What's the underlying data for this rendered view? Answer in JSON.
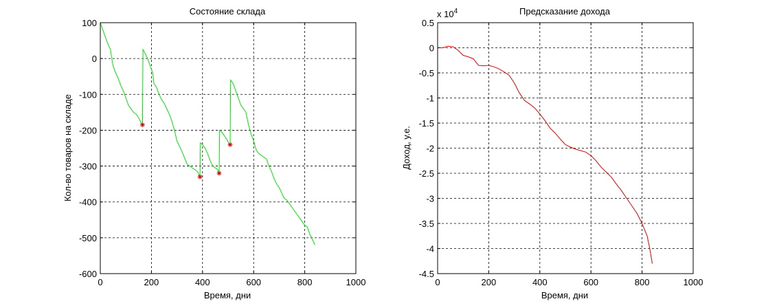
{
  "chart_data": [
    {
      "type": "line",
      "title": "Состояние склада",
      "xlabel": "Время, дни",
      "ylabel": "Кол-во товаров на складе",
      "xlim": [
        0,
        1000
      ],
      "ylim": [
        -600,
        100
      ],
      "xticks": [
        0,
        200,
        400,
        600,
        800,
        1000
      ],
      "yticks": [
        100,
        0,
        -100,
        -200,
        -300,
        -400,
        -500,
        -600
      ],
      "xtick_labels": [
        "0",
        "200",
        "400",
        "600",
        "800",
        "1000"
      ],
      "ytick_labels": [
        "100",
        "0",
        "-100",
        "-200",
        "-300",
        "-400",
        "-500",
        "-600"
      ],
      "grid": true,
      "line_color": "#00e600",
      "marker_color": "#cc0000",
      "series": [
        {
          "x": [
            0,
            10,
            20,
            30,
            40,
            45,
            50,
            60,
            70,
            80,
            90,
            100,
            110,
            120,
            130,
            140,
            150,
            160,
            165,
            167,
            175,
            185,
            195,
            205,
            210,
            220,
            230,
            240,
            250,
            260,
            270,
            280,
            290,
            300,
            320,
            340,
            360,
            380,
            390,
            392,
            400,
            410,
            420,
            430,
            440,
            450,
            460,
            465,
            467,
            475,
            485,
            495,
            505,
            508,
            510,
            520,
            530,
            540,
            550,
            560,
            570,
            580,
            590,
            600,
            610,
            620,
            630,
            640,
            650,
            660,
            670,
            680,
            690,
            700,
            710,
            720,
            730,
            740,
            750,
            760,
            770,
            780,
            790,
            800,
            810,
            820,
            830,
            840
          ],
          "y": [
            100,
            80,
            60,
            40,
            25,
            0,
            -20,
            -40,
            -55,
            -75,
            -90,
            -110,
            -130,
            -140,
            -150,
            -155,
            -165,
            -180,
            -185,
            25,
            15,
            0,
            -20,
            -40,
            -70,
            -80,
            -100,
            -115,
            -125,
            -140,
            -155,
            -175,
            -200,
            -230,
            -260,
            -295,
            -305,
            -315,
            -330,
            -235,
            -240,
            -250,
            -265,
            -285,
            -300,
            -305,
            -310,
            -320,
            -200,
            -205,
            -215,
            -225,
            -240,
            -240,
            -60,
            -70,
            -90,
            -110,
            -130,
            -140,
            -150,
            -185,
            -210,
            -230,
            -255,
            -265,
            -270,
            -275,
            -280,
            -300,
            -315,
            -335,
            -350,
            -360,
            -375,
            -390,
            -395,
            -405,
            -415,
            -425,
            -435,
            -445,
            -455,
            -465,
            -470,
            -490,
            -505,
            -520
          ]
        }
      ],
      "markers": {
        "x": [
          165,
          390,
          465,
          508
        ],
        "y": [
          -185,
          -330,
          -320,
          -240
        ]
      }
    },
    {
      "type": "line",
      "title": "Предсказание дохода",
      "xlabel": "Время, дни",
      "ylabel": "Доход, у.е.",
      "exponent_label": "x 10",
      "exponent_power": "4",
      "xlim": [
        0,
        1000
      ],
      "ylim": [
        -4.5,
        0.5
      ],
      "xticks": [
        0,
        200,
        400,
        600,
        800,
        1000
      ],
      "yticks": [
        0.5,
        0,
        -0.5,
        -1,
        -1.5,
        -2,
        -2.5,
        -3,
        -3.5,
        -4,
        -4.5
      ],
      "xtick_labels": [
        "0",
        "200",
        "400",
        "600",
        "800",
        "1000"
      ],
      "ytick_labels": [
        "0.5",
        "0",
        "-0.5",
        "-1",
        "-1.5",
        "-2",
        "-2.5",
        "-3",
        "-3.5",
        "-4",
        "-4.5"
      ],
      "grid": true,
      "line_color": "#dd0000",
      "series": [
        {
          "x": [
            0,
            20,
            40,
            60,
            80,
            100,
            120,
            140,
            160,
            180,
            200,
            220,
            240,
            260,
            280,
            300,
            320,
            340,
            360,
            380,
            400,
            420,
            440,
            460,
            480,
            500,
            520,
            540,
            560,
            580,
            600,
            620,
            640,
            660,
            680,
            700,
            720,
            740,
            760,
            780,
            800,
            820,
            830,
            840
          ],
          "y": [
            0,
            0,
            0.03,
            0.02,
            -0.05,
            -0.15,
            -0.18,
            -0.22,
            -0.35,
            -0.36,
            -0.35,
            -0.38,
            -0.42,
            -0.48,
            -0.55,
            -0.7,
            -0.9,
            -1.05,
            -1.12,
            -1.2,
            -1.32,
            -1.45,
            -1.6,
            -1.7,
            -1.82,
            -1.93,
            -1.98,
            -2.02,
            -2.05,
            -2.08,
            -2.15,
            -2.25,
            -2.38,
            -2.48,
            -2.58,
            -2.72,
            -2.85,
            -3.0,
            -3.15,
            -3.3,
            -3.5,
            -3.75,
            -4.0,
            -4.3
          ]
        }
      ]
    }
  ]
}
